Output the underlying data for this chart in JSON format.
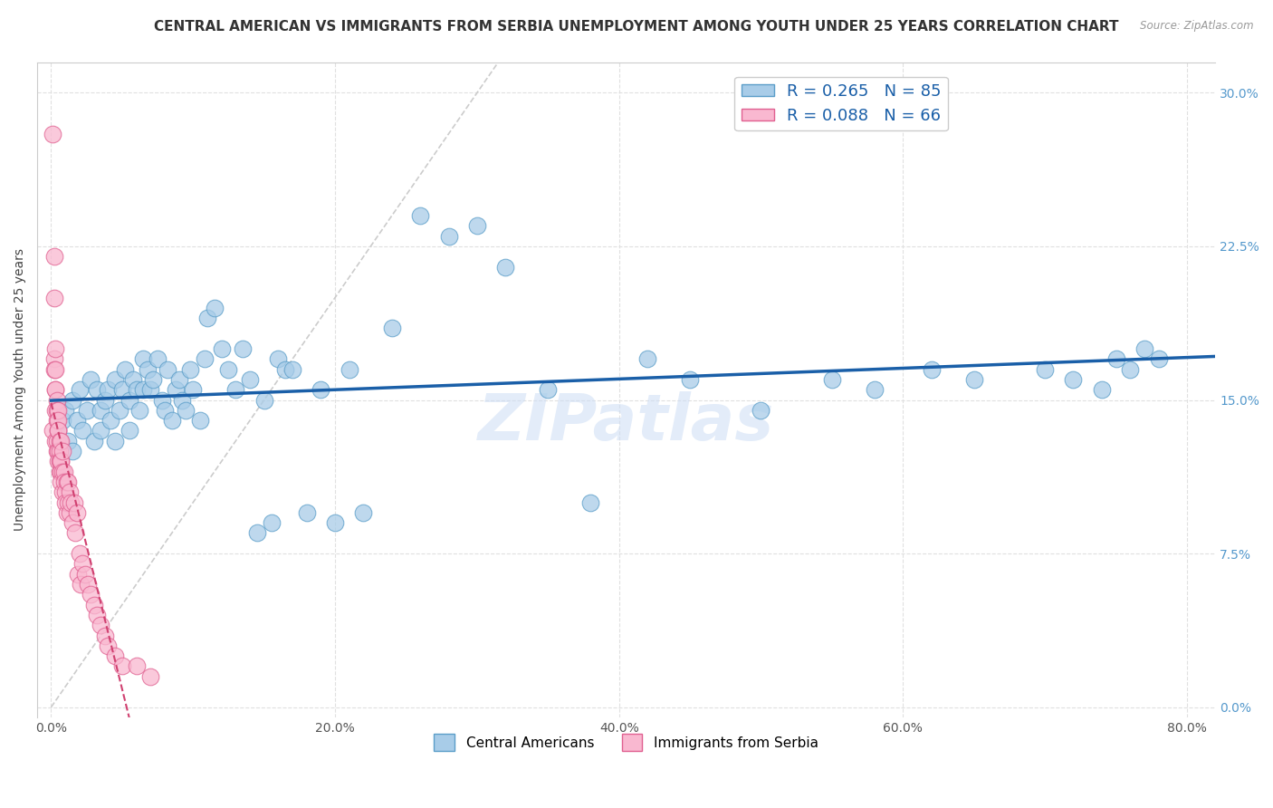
{
  "title": "CENTRAL AMERICAN VS IMMIGRANTS FROM SERBIA UNEMPLOYMENT AMONG YOUTH UNDER 25 YEARS CORRELATION CHART",
  "source": "Source: ZipAtlas.com",
  "ylabel": "Unemployment Among Youth under 25 years",
  "xlabel_ticks": [
    "0.0%",
    "20.0%",
    "40.0%",
    "60.0%",
    "80.0%"
  ],
  "xlabel_vals": [
    0.0,
    0.2,
    0.4,
    0.6,
    0.8
  ],
  "ylabel_ticks": [
    "0.0%",
    "7.5%",
    "15.0%",
    "22.5%",
    "30.0%"
  ],
  "ylabel_vals": [
    0.0,
    0.075,
    0.15,
    0.225,
    0.3
  ],
  "xlim": [
    -0.01,
    0.82
  ],
  "ylim": [
    -0.005,
    0.315
  ],
  "legend1_label": "R = 0.265   N = 85",
  "legend2_label": "R = 0.088   N = 66",
  "legend_bottom_label1": "Central Americans",
  "legend_bottom_label2": "Immigrants from Serbia",
  "blue_color": "#a8cce8",
  "blue_edge": "#5b9ec9",
  "pink_color": "#f9b8d0",
  "pink_edge": "#e06090",
  "blue_line_color": "#1a5fa8",
  "pink_line_color": "#d04070",
  "diag_line_color": "#cccccc",
  "title_fontsize": 11,
  "axis_label_fontsize": 10,
  "tick_fontsize": 10,
  "right_tick_color": "#5599cc",
  "blue_scatter_x": [
    0.005,
    0.008,
    0.01,
    0.012,
    0.015,
    0.015,
    0.018,
    0.02,
    0.022,
    0.025,
    0.028,
    0.03,
    0.032,
    0.035,
    0.035,
    0.038,
    0.04,
    0.042,
    0.045,
    0.045,
    0.048,
    0.05,
    0.052,
    0.055,
    0.055,
    0.058,
    0.06,
    0.062,
    0.065,
    0.065,
    0.068,
    0.07,
    0.072,
    0.075,
    0.078,
    0.08,
    0.082,
    0.085,
    0.088,
    0.09,
    0.092,
    0.095,
    0.098,
    0.1,
    0.105,
    0.108,
    0.11,
    0.115,
    0.12,
    0.125,
    0.13,
    0.135,
    0.14,
    0.145,
    0.15,
    0.155,
    0.16,
    0.165,
    0.17,
    0.18,
    0.19,
    0.2,
    0.21,
    0.22,
    0.24,
    0.26,
    0.28,
    0.3,
    0.32,
    0.35,
    0.38,
    0.42,
    0.45,
    0.5,
    0.55,
    0.58,
    0.62,
    0.65,
    0.7,
    0.72,
    0.74,
    0.75,
    0.76,
    0.77,
    0.78
  ],
  "blue_scatter_y": [
    0.135,
    0.14,
    0.145,
    0.13,
    0.15,
    0.125,
    0.14,
    0.155,
    0.135,
    0.145,
    0.16,
    0.13,
    0.155,
    0.145,
    0.135,
    0.15,
    0.155,
    0.14,
    0.16,
    0.13,
    0.145,
    0.155,
    0.165,
    0.15,
    0.135,
    0.16,
    0.155,
    0.145,
    0.17,
    0.155,
    0.165,
    0.155,
    0.16,
    0.17,
    0.15,
    0.145,
    0.165,
    0.14,
    0.155,
    0.16,
    0.15,
    0.145,
    0.165,
    0.155,
    0.14,
    0.17,
    0.19,
    0.195,
    0.175,
    0.165,
    0.155,
    0.175,
    0.16,
    0.085,
    0.15,
    0.09,
    0.17,
    0.165,
    0.165,
    0.095,
    0.155,
    0.09,
    0.165,
    0.095,
    0.185,
    0.24,
    0.23,
    0.235,
    0.215,
    0.155,
    0.1,
    0.17,
    0.16,
    0.145,
    0.16,
    0.155,
    0.165,
    0.16,
    0.165,
    0.16,
    0.155,
    0.17,
    0.165,
    0.175,
    0.17
  ],
  "pink_scatter_x": [
    0.001,
    0.001,
    0.002,
    0.002,
    0.002,
    0.002,
    0.003,
    0.003,
    0.003,
    0.003,
    0.003,
    0.003,
    0.004,
    0.004,
    0.004,
    0.004,
    0.004,
    0.005,
    0.005,
    0.005,
    0.005,
    0.005,
    0.005,
    0.006,
    0.006,
    0.006,
    0.006,
    0.007,
    0.007,
    0.007,
    0.007,
    0.007,
    0.008,
    0.008,
    0.008,
    0.009,
    0.009,
    0.01,
    0.01,
    0.011,
    0.011,
    0.012,
    0.012,
    0.013,
    0.013,
    0.014,
    0.015,
    0.016,
    0.017,
    0.018,
    0.019,
    0.02,
    0.021,
    0.022,
    0.024,
    0.026,
    0.028,
    0.03,
    0.032,
    0.035,
    0.038,
    0.04,
    0.045,
    0.05,
    0.06,
    0.07
  ],
  "pink_scatter_y": [
    0.28,
    0.135,
    0.22,
    0.17,
    0.2,
    0.165,
    0.155,
    0.145,
    0.165,
    0.155,
    0.175,
    0.13,
    0.15,
    0.14,
    0.13,
    0.145,
    0.125,
    0.145,
    0.135,
    0.125,
    0.14,
    0.135,
    0.12,
    0.13,
    0.125,
    0.115,
    0.12,
    0.13,
    0.12,
    0.115,
    0.11,
    0.12,
    0.125,
    0.115,
    0.105,
    0.115,
    0.11,
    0.105,
    0.1,
    0.11,
    0.095,
    0.11,
    0.1,
    0.105,
    0.095,
    0.1,
    0.09,
    0.1,
    0.085,
    0.095,
    0.065,
    0.075,
    0.06,
    0.07,
    0.065,
    0.06,
    0.055,
    0.05,
    0.045,
    0.04,
    0.035,
    0.03,
    0.025,
    0.02,
    0.02,
    0.015
  ]
}
